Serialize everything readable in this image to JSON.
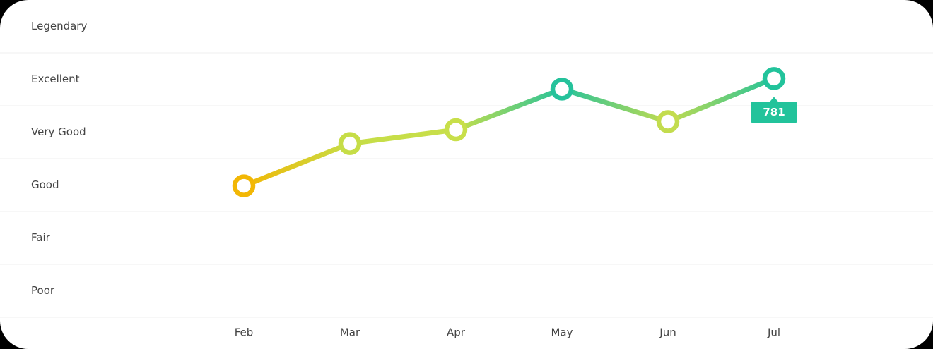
{
  "chart_data": {
    "type": "line",
    "categories": [
      "Feb",
      "Mar",
      "Apr",
      "May",
      "Jun",
      "Jul"
    ],
    "series": [
      {
        "values": [
          649,
          701,
          718,
          768,
          728,
          781
        ],
        "colors": [
          "#f2b705",
          "#c6dd47",
          "#c8df4a",
          "#25c29b",
          "#c3dc4e",
          "#22c39b"
        ]
      }
    ],
    "ylim": [
      487.5,
      877.5
    ],
    "yticks": [
      {
        "value": 845,
        "label": "Legendary"
      },
      {
        "value": 780,
        "label": "Excellent"
      },
      {
        "value": 715,
        "label": "Very Good"
      },
      {
        "value": 650,
        "label": "Good"
      },
      {
        "value": 585,
        "label": "Fair"
      },
      {
        "value": 520,
        "label": "Poor"
      }
    ],
    "grid": true
  }
}
